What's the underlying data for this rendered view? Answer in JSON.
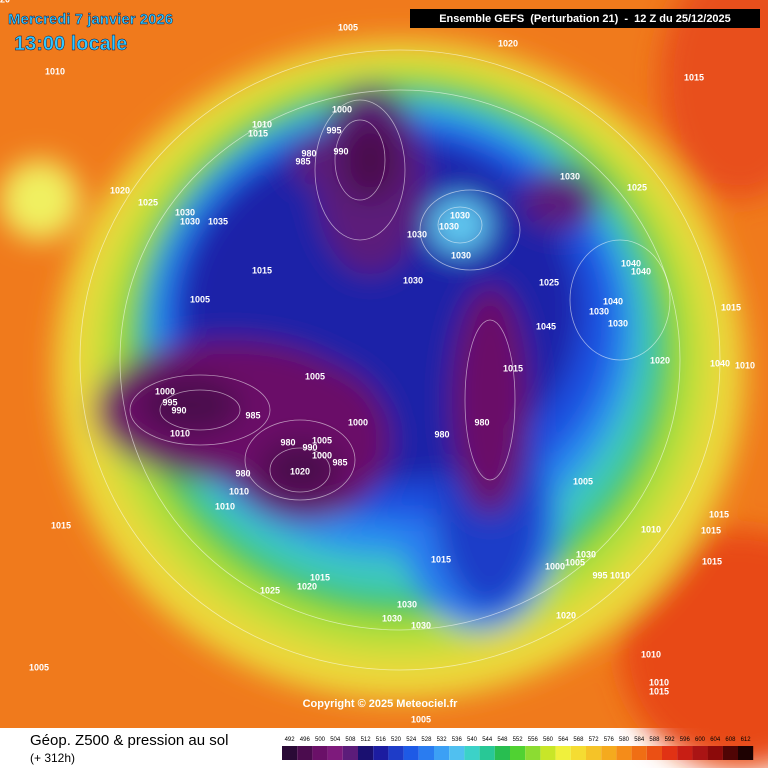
{
  "header": {
    "date": "Mercredi 7 janvier 2026",
    "time": "13:00 locale",
    "model": "Ensemble GEFS  (Perturbation 21)  -  12 Z du 25/12/2025"
  },
  "map": {
    "copyright": "Copyright © 2025 Meteociel.fr",
    "isobar_labels": [
      1005,
      1020,
      1010,
      1015,
      1000,
      995,
      1010,
      1015,
      990,
      980,
      985,
      1030,
      1025,
      1020,
      1025,
      1030,
      1030,
      1035,
      1030,
      1030,
      1030,
      1030,
      1015,
      1040,
      1040,
      1030,
      1025,
      1005,
      1040,
      1015,
      1030,
      1030,
      1045,
      1020,
      1040,
      1010,
      1015,
      1005,
      1000,
      995,
      990,
      985,
      1000,
      980,
      1010,
      980,
      1005,
      990,
      1000,
      985,
      980,
      1020,
      980,
      1005,
      1010,
      1010,
      1015,
      1010,
      1015,
      1015,
      1015,
      1030,
      1005,
      1000,
      995,
      1010,
      1015,
      1015,
      1020,
      1025,
      1030,
      1030,
      1030,
      1020,
      1005,
      1010,
      1010,
      1015,
      1005,
      1020
    ]
  },
  "footer": {
    "title": "Géop. Z500 & pression au sol",
    "lead": "(+ 312h)"
  },
  "scale": {
    "values": [
      492,
      496,
      500,
      504,
      508,
      512,
      516,
      520,
      524,
      528,
      532,
      536,
      540,
      544,
      548,
      552,
      556,
      560,
      564,
      568,
      572,
      576,
      580,
      584,
      588,
      592,
      596,
      600,
      604,
      608,
      612
    ],
    "colors": [
      "#2a0a36",
      "#4b0c4e",
      "#6a1068",
      "#7e1a7c",
      "#5c1c7a",
      "#1a1070",
      "#1c1ca0",
      "#1e3cc8",
      "#1e5ae6",
      "#2a7cf0",
      "#3ca0f5",
      "#50c0f0",
      "#3cd2c8",
      "#28c896",
      "#28be50",
      "#50d232",
      "#8cdc32",
      "#c8e628",
      "#f0f03c",
      "#f5dc32",
      "#f5c328",
      "#f5aa1e",
      "#f58c19",
      "#f06e14",
      "#eb5014",
      "#e13214",
      "#c81e14",
      "#aa1414",
      "#8c0a0a",
      "#500505",
      "#1e0202"
    ]
  }
}
